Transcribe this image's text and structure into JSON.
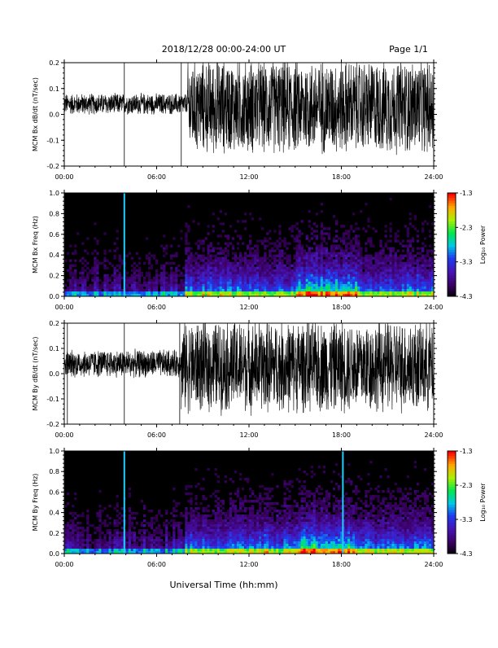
{
  "header": {
    "title": "2018/12/28  00:00-24:00 UT",
    "page": "Page 1/1"
  },
  "chart_data": [
    {
      "type": "line",
      "ylabel": "MCM Bx dB/dt (nT/sec)",
      "xlim": [
        0,
        24
      ],
      "ylim": [
        -0.2,
        0.2
      ],
      "x_ticks": [
        "00:00",
        "06:00",
        "12:00",
        "18:00",
        "24:00"
      ],
      "y_ticks": [
        "0.2",
        "0.1",
        "0.0",
        "-0.1",
        "-0.2"
      ],
      "segments": [
        {
          "x": [
            0,
            8.0
          ],
          "center": 0.04,
          "amplitude": 0.045
        },
        {
          "x": [
            8.0,
            24
          ],
          "center": 0.03,
          "amplitude": 0.2
        }
      ],
      "spikes_x": [
        3.9,
        7.6
      ]
    },
    {
      "type": "heatmap",
      "ylabel": "MCM Bx Freq (Hz)",
      "xlim": [
        0,
        24
      ],
      "ylim": [
        0,
        1.0
      ],
      "x_ticks": [
        "00:00",
        "06:00",
        "12:00",
        "18:00",
        "24:00"
      ],
      "y_ticks": [
        "1.0",
        "0.8",
        "0.6",
        "0.4",
        "0.2",
        "0.0"
      ],
      "colorbar": {
        "label": "Log₁₀ Power",
        "ticks": [
          "-1.3",
          "-2.3",
          "-3.3",
          "-4.3"
        ],
        "range": [
          -4.3,
          -1.3
        ]
      },
      "bright_lines_x": [
        3.9
      ]
    },
    {
      "type": "line",
      "ylabel": "MCM By dB/dt (nT/sec)",
      "xlim": [
        0,
        24
      ],
      "ylim": [
        -0.2,
        0.2
      ],
      "x_ticks": [
        "00:00",
        "06:00",
        "12:00",
        "18:00",
        "24:00"
      ],
      "y_ticks": [
        "0.2",
        "0.1",
        "0.0",
        "-0.1",
        "-0.2"
      ],
      "segments": [
        {
          "x": [
            0,
            7.6
          ],
          "center": 0.04,
          "amplitude": 0.06
        },
        {
          "x": [
            7.6,
            24
          ],
          "center": 0.03,
          "amplitude": 0.2
        }
      ],
      "spikes_x": [
        0.2,
        3.9,
        7.5
      ]
    },
    {
      "type": "heatmap",
      "ylabel": "MCM By Freq (Hz)",
      "xlim": [
        0,
        24
      ],
      "ylim": [
        0,
        1.0
      ],
      "x_ticks": [
        "00:00",
        "06:00",
        "12:00",
        "18:00",
        "24:00"
      ],
      "y_ticks": [
        "1.0",
        "0.8",
        "0.6",
        "0.4",
        "0.2",
        "0.0"
      ],
      "colorbar": {
        "label": "Log₁₀ Power",
        "ticks": [
          "-1.3",
          "-2.3",
          "-3.3",
          "-4.3"
        ],
        "range": [
          -4.3,
          -1.3
        ]
      },
      "bright_lines_x": [
        3.9,
        18.1
      ]
    }
  ],
  "xtitle": "Universal Time (hh:mm)"
}
